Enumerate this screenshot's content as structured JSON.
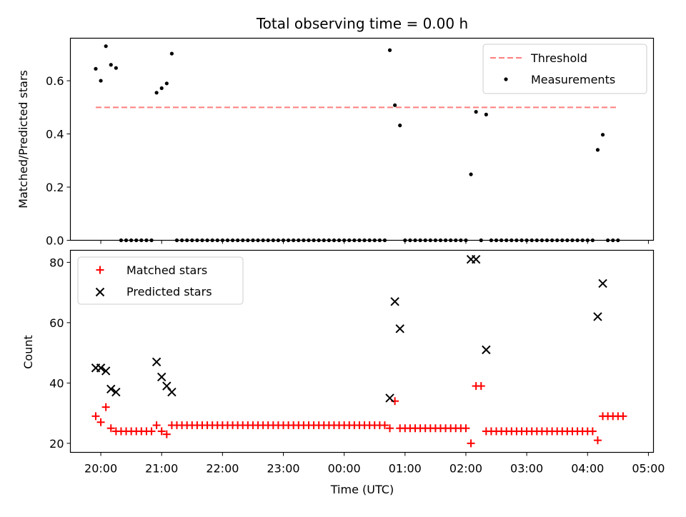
{
  "figure": {
    "title": "Total observing time = 0.00 h",
    "xlabel": "Time (UTC)",
    "x_ticks": [
      "20:00",
      "21:00",
      "22:00",
      "23:00",
      "00:00",
      "01:00",
      "02:00",
      "03:00",
      "04:00",
      "05:00"
    ]
  },
  "colors": {
    "threshold": "#ff7f7f",
    "measurement": "#000000",
    "matched": "#ff0000",
    "predicted": "#000000"
  },
  "chart_data": [
    {
      "type": "scatter",
      "title": "Total observing time = 0.00 h",
      "xlabel": "",
      "ylabel": "Matched/Predicted stars",
      "x_unit": "minutes after 20:00 UTC",
      "xlim": [
        -30,
        545
      ],
      "ylim": [
        0,
        0.76
      ],
      "y_ticks": [
        0.0,
        0.2,
        0.4,
        0.6
      ],
      "legend_position": "upper right",
      "legend": [
        "Threshold",
        "Measurements"
      ],
      "threshold": {
        "name": "Threshold",
        "y": 0.5,
        "x_range": [
          -5,
          510
        ]
      },
      "series": [
        {
          "name": "Measurements",
          "marker": "dot",
          "points": [
            [
              -5,
              0.645
            ],
            [
              0,
              0.6
            ],
            [
              5,
              0.73
            ],
            [
              10,
              0.66
            ],
            [
              15,
              0.648
            ],
            [
              20,
              0
            ],
            [
              25,
              0
            ],
            [
              30,
              0
            ],
            [
              35,
              0
            ],
            [
              40,
              0
            ],
            [
              45,
              0
            ],
            [
              50,
              0
            ],
            [
              55,
              0.555
            ],
            [
              60,
              0.572
            ],
            [
              65,
              0.59
            ],
            [
              70,
              0.702
            ],
            [
              75,
              0
            ],
            [
              80,
              0
            ],
            [
              85,
              0
            ],
            [
              90,
              0
            ],
            [
              95,
              0
            ],
            [
              100,
              0
            ],
            [
              105,
              0
            ],
            [
              110,
              0
            ],
            [
              115,
              0
            ],
            [
              120,
              0
            ],
            [
              125,
              0
            ],
            [
              130,
              0
            ],
            [
              135,
              0
            ],
            [
              140,
              0
            ],
            [
              145,
              0
            ],
            [
              150,
              0
            ],
            [
              155,
              0
            ],
            [
              160,
              0
            ],
            [
              165,
              0
            ],
            [
              170,
              0
            ],
            [
              175,
              0
            ],
            [
              180,
              0
            ],
            [
              185,
              0
            ],
            [
              190,
              0
            ],
            [
              195,
              0
            ],
            [
              200,
              0
            ],
            [
              205,
              0
            ],
            [
              210,
              0
            ],
            [
              215,
              0
            ],
            [
              220,
              0
            ],
            [
              225,
              0
            ],
            [
              230,
              0
            ],
            [
              235,
              0
            ],
            [
              240,
              0
            ],
            [
              245,
              0
            ],
            [
              250,
              0
            ],
            [
              255,
              0
            ],
            [
              260,
              0
            ],
            [
              265,
              0
            ],
            [
              270,
              0
            ],
            [
              275,
              0
            ],
            [
              280,
              0
            ],
            [
              285,
              0.715
            ],
            [
              290,
              0.508
            ],
            [
              295,
              0.432
            ],
            [
              300,
              0
            ],
            [
              305,
              0
            ],
            [
              310,
              0
            ],
            [
              315,
              0
            ],
            [
              320,
              0
            ],
            [
              325,
              0
            ],
            [
              330,
              0
            ],
            [
              335,
              0
            ],
            [
              340,
              0
            ],
            [
              345,
              0
            ],
            [
              350,
              0
            ],
            [
              355,
              0
            ],
            [
              360,
              0
            ],
            [
              365,
              0.248
            ],
            [
              370,
              0.483
            ],
            [
              375,
              0
            ],
            [
              380,
              0.473
            ],
            [
              385,
              0
            ],
            [
              390,
              0
            ],
            [
              395,
              0
            ],
            [
              400,
              0
            ],
            [
              405,
              0
            ],
            [
              410,
              0
            ],
            [
              415,
              0
            ],
            [
              420,
              0
            ],
            [
              425,
              0
            ],
            [
              430,
              0
            ],
            [
              435,
              0
            ],
            [
              440,
              0
            ],
            [
              445,
              0
            ],
            [
              450,
              0
            ],
            [
              455,
              0
            ],
            [
              460,
              0
            ],
            [
              465,
              0
            ],
            [
              470,
              0
            ],
            [
              475,
              0
            ],
            [
              480,
              0
            ],
            [
              485,
              0
            ],
            [
              490,
              0.34
            ],
            [
              495,
              0.397
            ],
            [
              500,
              0
            ],
            [
              505,
              0
            ],
            [
              510,
              0
            ]
          ]
        }
      ]
    },
    {
      "type": "scatter",
      "title": "",
      "xlabel": "Time (UTC)",
      "ylabel": "Count",
      "x_unit": "minutes after 20:00 UTC",
      "xlim": [
        -30,
        545
      ],
      "ylim": [
        17,
        84
      ],
      "y_ticks": [
        20,
        40,
        60,
        80
      ],
      "legend_position": "upper left",
      "legend": [
        "Matched stars",
        "Predicted stars"
      ],
      "series": [
        {
          "name": "Matched stars",
          "marker": "plus",
          "points": [
            [
              -5,
              29
            ],
            [
              0,
              27
            ],
            [
              5,
              32
            ],
            [
              10,
              25
            ],
            [
              15,
              24
            ],
            [
              20,
              24
            ],
            [
              25,
              24
            ],
            [
              30,
              24
            ],
            [
              35,
              24
            ],
            [
              40,
              24
            ],
            [
              45,
              24
            ],
            [
              50,
              24
            ],
            [
              55,
              26
            ],
            [
              60,
              24
            ],
            [
              65,
              23
            ],
            [
              70,
              26
            ],
            [
              75,
              26
            ],
            [
              80,
              26
            ],
            [
              85,
              26
            ],
            [
              90,
              26
            ],
            [
              95,
              26
            ],
            [
              100,
              26
            ],
            [
              105,
              26
            ],
            [
              110,
              26
            ],
            [
              115,
              26
            ],
            [
              120,
              26
            ],
            [
              125,
              26
            ],
            [
              130,
              26
            ],
            [
              135,
              26
            ],
            [
              140,
              26
            ],
            [
              145,
              26
            ],
            [
              150,
              26
            ],
            [
              155,
              26
            ],
            [
              160,
              26
            ],
            [
              165,
              26
            ],
            [
              170,
              26
            ],
            [
              175,
              26
            ],
            [
              180,
              26
            ],
            [
              185,
              26
            ],
            [
              190,
              26
            ],
            [
              195,
              26
            ],
            [
              200,
              26
            ],
            [
              205,
              26
            ],
            [
              210,
              26
            ],
            [
              215,
              26
            ],
            [
              220,
              26
            ],
            [
              225,
              26
            ],
            [
              230,
              26
            ],
            [
              235,
              26
            ],
            [
              240,
              26
            ],
            [
              245,
              26
            ],
            [
              250,
              26
            ],
            [
              255,
              26
            ],
            [
              260,
              26
            ],
            [
              265,
              26
            ],
            [
              270,
              26
            ],
            [
              275,
              26
            ],
            [
              280,
              26
            ],
            [
              285,
              25
            ],
            [
              290,
              34
            ],
            [
              295,
              25
            ],
            [
              300,
              25
            ],
            [
              305,
              25
            ],
            [
              310,
              25
            ],
            [
              315,
              25
            ],
            [
              320,
              25
            ],
            [
              325,
              25
            ],
            [
              330,
              25
            ],
            [
              335,
              25
            ],
            [
              340,
              25
            ],
            [
              345,
              25
            ],
            [
              350,
              25
            ],
            [
              355,
              25
            ],
            [
              360,
              25
            ],
            [
              365,
              20
            ],
            [
              370,
              39
            ],
            [
              375,
              39
            ],
            [
              380,
              24
            ],
            [
              385,
              24
            ],
            [
              390,
              24
            ],
            [
              395,
              24
            ],
            [
              400,
              24
            ],
            [
              405,
              24
            ],
            [
              410,
              24
            ],
            [
              415,
              24
            ],
            [
              420,
              24
            ],
            [
              425,
              24
            ],
            [
              430,
              24
            ],
            [
              435,
              24
            ],
            [
              440,
              24
            ],
            [
              445,
              24
            ],
            [
              450,
              24
            ],
            [
              455,
              24
            ],
            [
              460,
              24
            ],
            [
              465,
              24
            ],
            [
              470,
              24
            ],
            [
              475,
              24
            ],
            [
              480,
              24
            ],
            [
              485,
              24
            ],
            [
              490,
              21
            ],
            [
              495,
              29
            ],
            [
              500,
              29
            ],
            [
              505,
              29
            ],
            [
              510,
              29
            ],
            [
              515,
              29
            ]
          ]
        },
        {
          "name": "Predicted stars",
          "marker": "x",
          "points": [
            [
              -5,
              45
            ],
            [
              0,
              45
            ],
            [
              5,
              44
            ],
            [
              10,
              38
            ],
            [
              15,
              37
            ],
            [
              55,
              47
            ],
            [
              60,
              42
            ],
            [
              65,
              39
            ],
            [
              70,
              37
            ],
            [
              285,
              35
            ],
            [
              290,
              67
            ],
            [
              295,
              58
            ],
            [
              365,
              81
            ],
            [
              370,
              81
            ],
            [
              380,
              51
            ],
            [
              490,
              62
            ],
            [
              495,
              73
            ]
          ]
        }
      ]
    }
  ]
}
